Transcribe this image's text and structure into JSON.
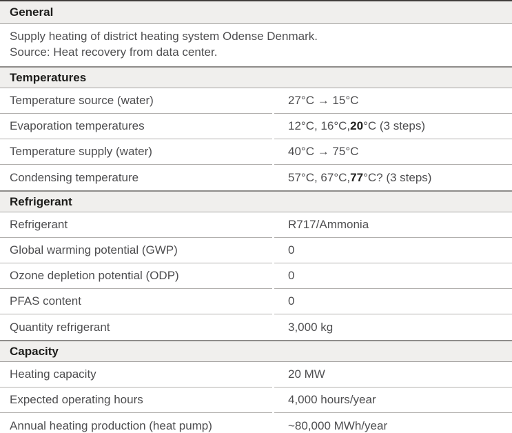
{
  "colors": {
    "page_bg": "#ffffff",
    "band_bg": "#f0efed",
    "top_border": "#403d3b",
    "band_top_border": "#8e8c8a",
    "band_bottom_border": "#a5a3a1",
    "row_separator": "#b2b0ae",
    "text": "#4e4e50",
    "heading_text": "#1d1d1b",
    "bold_text": "#222220"
  },
  "table": {
    "sections": [
      {
        "header": "General",
        "description_lines": [
          "Supply heating of district heating system Odense Denmark.",
          "Source: Heat recovery from data center."
        ],
        "rows": []
      },
      {
        "header": "Temperatures",
        "rows": [
          {
            "label": "Temperature source (water)",
            "value_parts": [
              {
                "text": "27°C → 15°C",
                "bold": false
              }
            ]
          },
          {
            "label": "Evaporation temperatures",
            "value_parts": [
              {
                "text": "12°C, 16°C, ",
                "bold": false
              },
              {
                "text": "20",
                "bold": true
              },
              {
                "text": "°C (3 steps)",
                "bold": false
              }
            ]
          },
          {
            "label": "Temperature supply (water)",
            "value_parts": [
              {
                "text": "40°C → 75°C",
                "bold": false
              }
            ]
          },
          {
            "label": "Condensing temperature",
            "value_parts": [
              {
                "text": "57°C, 67°C, ",
                "bold": false
              },
              {
                "text": "77",
                "bold": true
              },
              {
                "text": "°C? (3 steps)",
                "bold": false
              }
            ]
          }
        ]
      },
      {
        "header": "Refrigerant",
        "rows": [
          {
            "label": "Refrigerant",
            "value_parts": [
              {
                "text": "R717/Ammonia",
                "bold": false
              }
            ]
          },
          {
            "label": "Global warming potential (GWP)",
            "value_parts": [
              {
                "text": "0",
                "bold": false
              }
            ]
          },
          {
            "label": "Ozone depletion potential (ODP)",
            "value_parts": [
              {
                "text": "0",
                "bold": false
              }
            ]
          },
          {
            "label": "PFAS content",
            "value_parts": [
              {
                "text": "0",
                "bold": false
              }
            ]
          },
          {
            "label": "Quantity refrigerant",
            "value_parts": [
              {
                "text": "3,000 kg",
                "bold": false
              }
            ]
          }
        ]
      },
      {
        "header": "Capacity",
        "rows": [
          {
            "label": "Heating capacity",
            "value_parts": [
              {
                "text": "20 MW",
                "bold": false
              }
            ]
          },
          {
            "label": "Expected operating hours",
            "value_parts": [
              {
                "text": "4,000 hours/year",
                "bold": false
              }
            ]
          },
          {
            "label": "Annual heating production (heat pump)",
            "value_parts": [
              {
                "text": "~80,000 MWh/year",
                "bold": false
              }
            ]
          }
        ]
      }
    ]
  }
}
